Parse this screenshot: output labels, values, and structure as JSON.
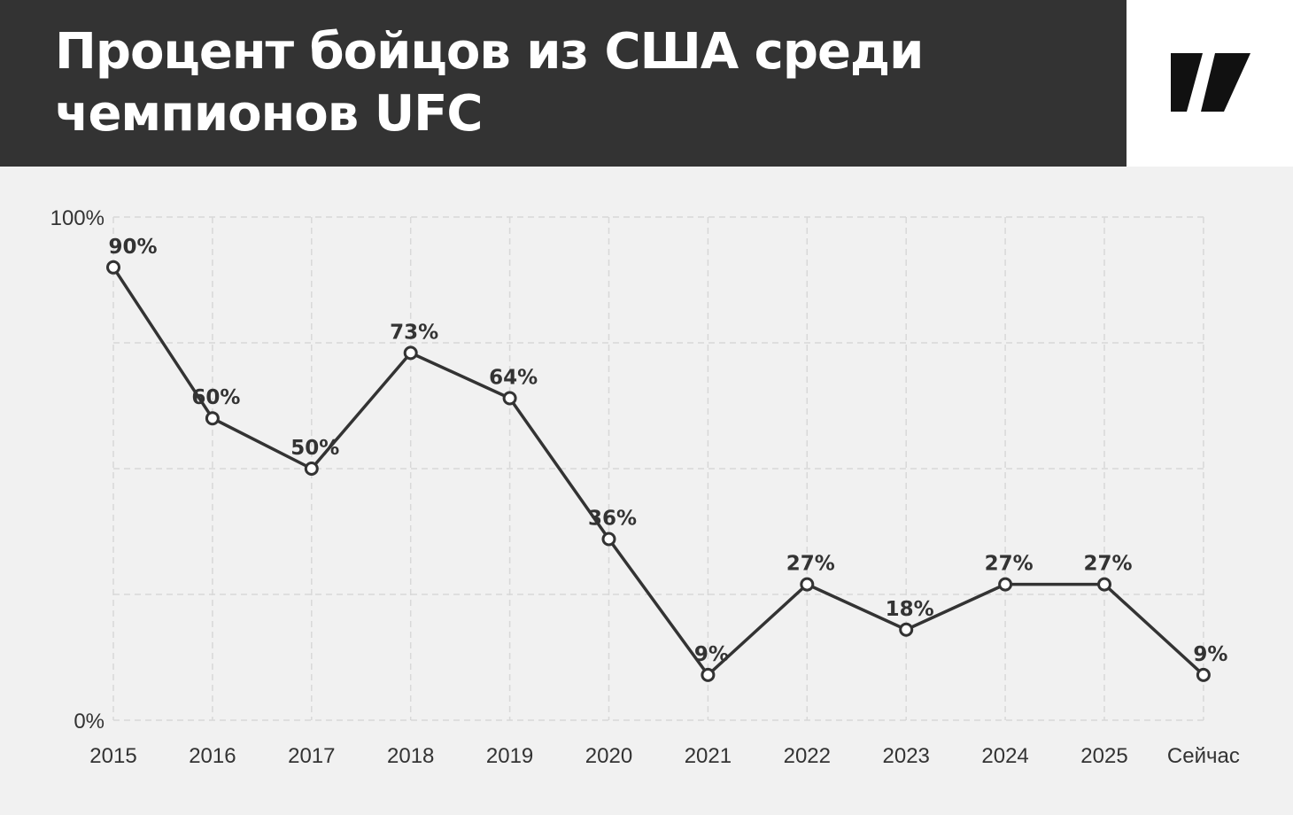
{
  "header": {
    "title": "Процент бойцов из США среди чемпионов UFC",
    "logo_icon": "slash-logo-icon",
    "background_color": "#333333",
    "title_color": "#ffffff"
  },
  "chart_data": {
    "type": "line",
    "title": "Процент бойцов из США среди чемпионов UFC",
    "xlabel": "",
    "ylabel": "",
    "categories": [
      "2015",
      "2016",
      "2017",
      "2018",
      "2019",
      "2020",
      "2021",
      "2022",
      "2023",
      "2024",
      "2025",
      "Сейчас"
    ],
    "series": [
      {
        "values": [
          90,
          60,
          50,
          73,
          64,
          36,
          9,
          27,
          18,
          27,
          27,
          9
        ],
        "labels": [
          "90%",
          "60%",
          "50%",
          "73%",
          "64%",
          "36%",
          "9%",
          "27%",
          "18%",
          "27%",
          "27%",
          "9%"
        ]
      }
    ],
    "ylim": [
      0,
      100
    ],
    "y_ticks": [
      0,
      25,
      50,
      75,
      100
    ],
    "y_tick_labels": [
      "0%",
      "",
      "",
      "",
      "100%"
    ],
    "grid": true,
    "line_color": "#333333",
    "marker_fill": "#ffffff"
  }
}
